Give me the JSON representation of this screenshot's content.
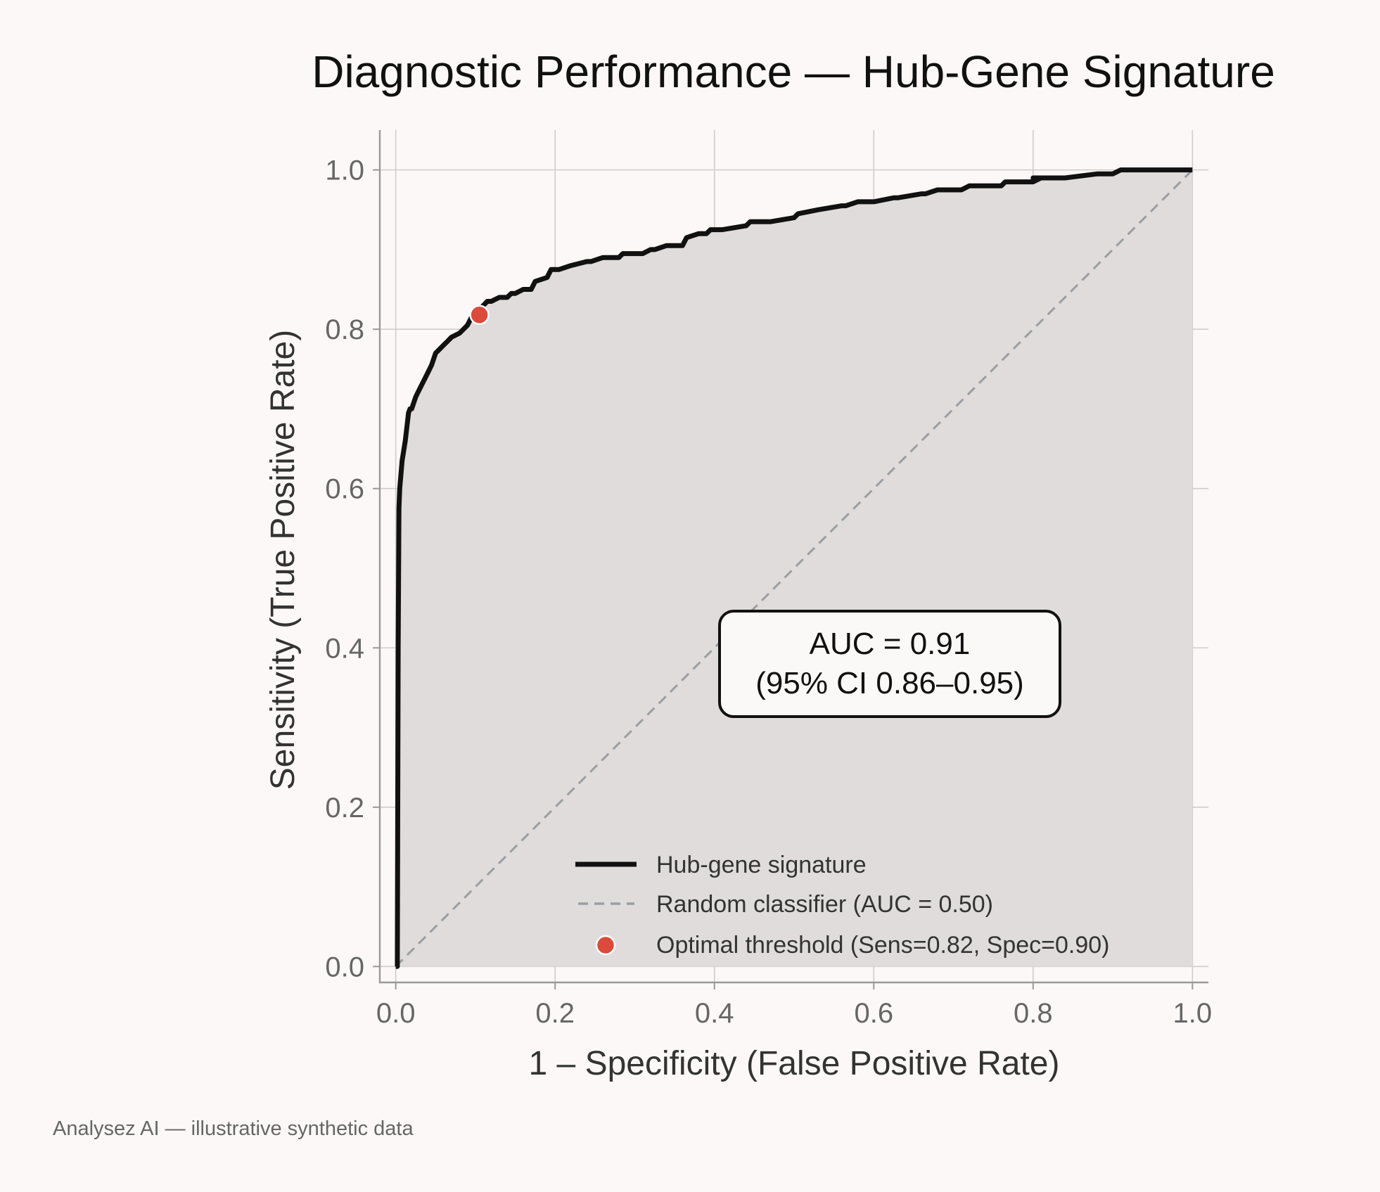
{
  "chart_data": {
    "type": "line",
    "title": "Diagnostic Performance — Hub-Gene Signature",
    "xlabel": "1 – Specificity (False Positive Rate)",
    "ylabel": "Sensitivity (True Positive Rate)",
    "xlim": [
      -0.02,
      1.02
    ],
    "ylim": [
      -0.02,
      1.05
    ],
    "x_ticks": [
      0.0,
      0.2,
      0.4,
      0.6,
      0.8,
      1.0
    ],
    "y_ticks": [
      0.0,
      0.2,
      0.4,
      0.6,
      0.8,
      1.0
    ],
    "x_tick_labels": [
      "0.0",
      "0.2",
      "0.4",
      "0.6",
      "0.8",
      "1.0"
    ],
    "y_tick_labels": [
      "0.0",
      "0.2",
      "0.4",
      "0.6",
      "0.8",
      "1.0"
    ],
    "grid": true,
    "legend_position": "lower right",
    "series": [
      {
        "name": "Hub-gene signature",
        "style": "solid",
        "color": "#111111",
        "fill_under": true,
        "fill_color": "#dfdcdb",
        "x": [
          0.0,
          0.002,
          0.003,
          0.004,
          0.005,
          0.008,
          0.012,
          0.016,
          0.018,
          0.02,
          0.025,
          0.03,
          0.035,
          0.04,
          0.045,
          0.05,
          0.055,
          0.06,
          0.065,
          0.07,
          0.08,
          0.085,
          0.09,
          0.095,
          0.1,
          0.105,
          0.11,
          0.115,
          0.12,
          0.13,
          0.14,
          0.145,
          0.15,
          0.16,
          0.17,
          0.175,
          0.19,
          0.195,
          0.2,
          0.205,
          0.22,
          0.24,
          0.245,
          0.26,
          0.28,
          0.285,
          0.31,
          0.32,
          0.325,
          0.34,
          0.36,
          0.365,
          0.38,
          0.39,
          0.395,
          0.41,
          0.44,
          0.445,
          0.47,
          0.5,
          0.505,
          0.53,
          0.56,
          0.565,
          0.58,
          0.6,
          0.625,
          0.63,
          0.66,
          0.665,
          0.68,
          0.71,
          0.72,
          0.76,
          0.765,
          0.8,
          0.81,
          0.8,
          0.84,
          0.88,
          0.9,
          0.91,
          1.0
        ],
        "y": [
          0.0,
          0.0,
          0.4,
          0.575,
          0.6,
          0.635,
          0.66,
          0.695,
          0.7,
          0.7,
          0.715,
          0.725,
          0.735,
          0.745,
          0.755,
          0.77,
          0.775,
          0.78,
          0.785,
          0.79,
          0.795,
          0.8,
          0.805,
          0.815,
          0.82,
          0.825,
          0.83,
          0.835,
          0.835,
          0.84,
          0.84,
          0.845,
          0.845,
          0.85,
          0.85,
          0.86,
          0.865,
          0.875,
          0.875,
          0.875,
          0.88,
          0.885,
          0.885,
          0.89,
          0.89,
          0.895,
          0.895,
          0.9,
          0.9,
          0.905,
          0.905,
          0.915,
          0.92,
          0.92,
          0.925,
          0.925,
          0.93,
          0.935,
          0.935,
          0.94,
          0.945,
          0.95,
          0.955,
          0.955,
          0.96,
          0.96,
          0.965,
          0.965,
          0.97,
          0.97,
          0.975,
          0.975,
          0.98,
          0.98,
          0.985,
          0.985,
          0.99,
          0.99,
          0.99,
          0.995,
          0.995,
          1.0,
          1.0
        ]
      },
      {
        "name": "Random classifier (AUC = 0.50)",
        "style": "dashed",
        "color": "#9a9ea3",
        "x": [
          0.0,
          1.0
        ],
        "y": [
          0.0,
          1.0
        ]
      },
      {
        "name": "Optimal threshold (Sens=0.82, Spec=0.90)",
        "style": "marker",
        "color": "#db4a3a",
        "x": [
          0.105
        ],
        "y": [
          0.818
        ]
      }
    ],
    "annotation": {
      "line1": "AUC = 0.91",
      "line2": "(95% CI 0.86–0.95)"
    }
  },
  "footer": "Analysez AI — illustrative synthetic data"
}
